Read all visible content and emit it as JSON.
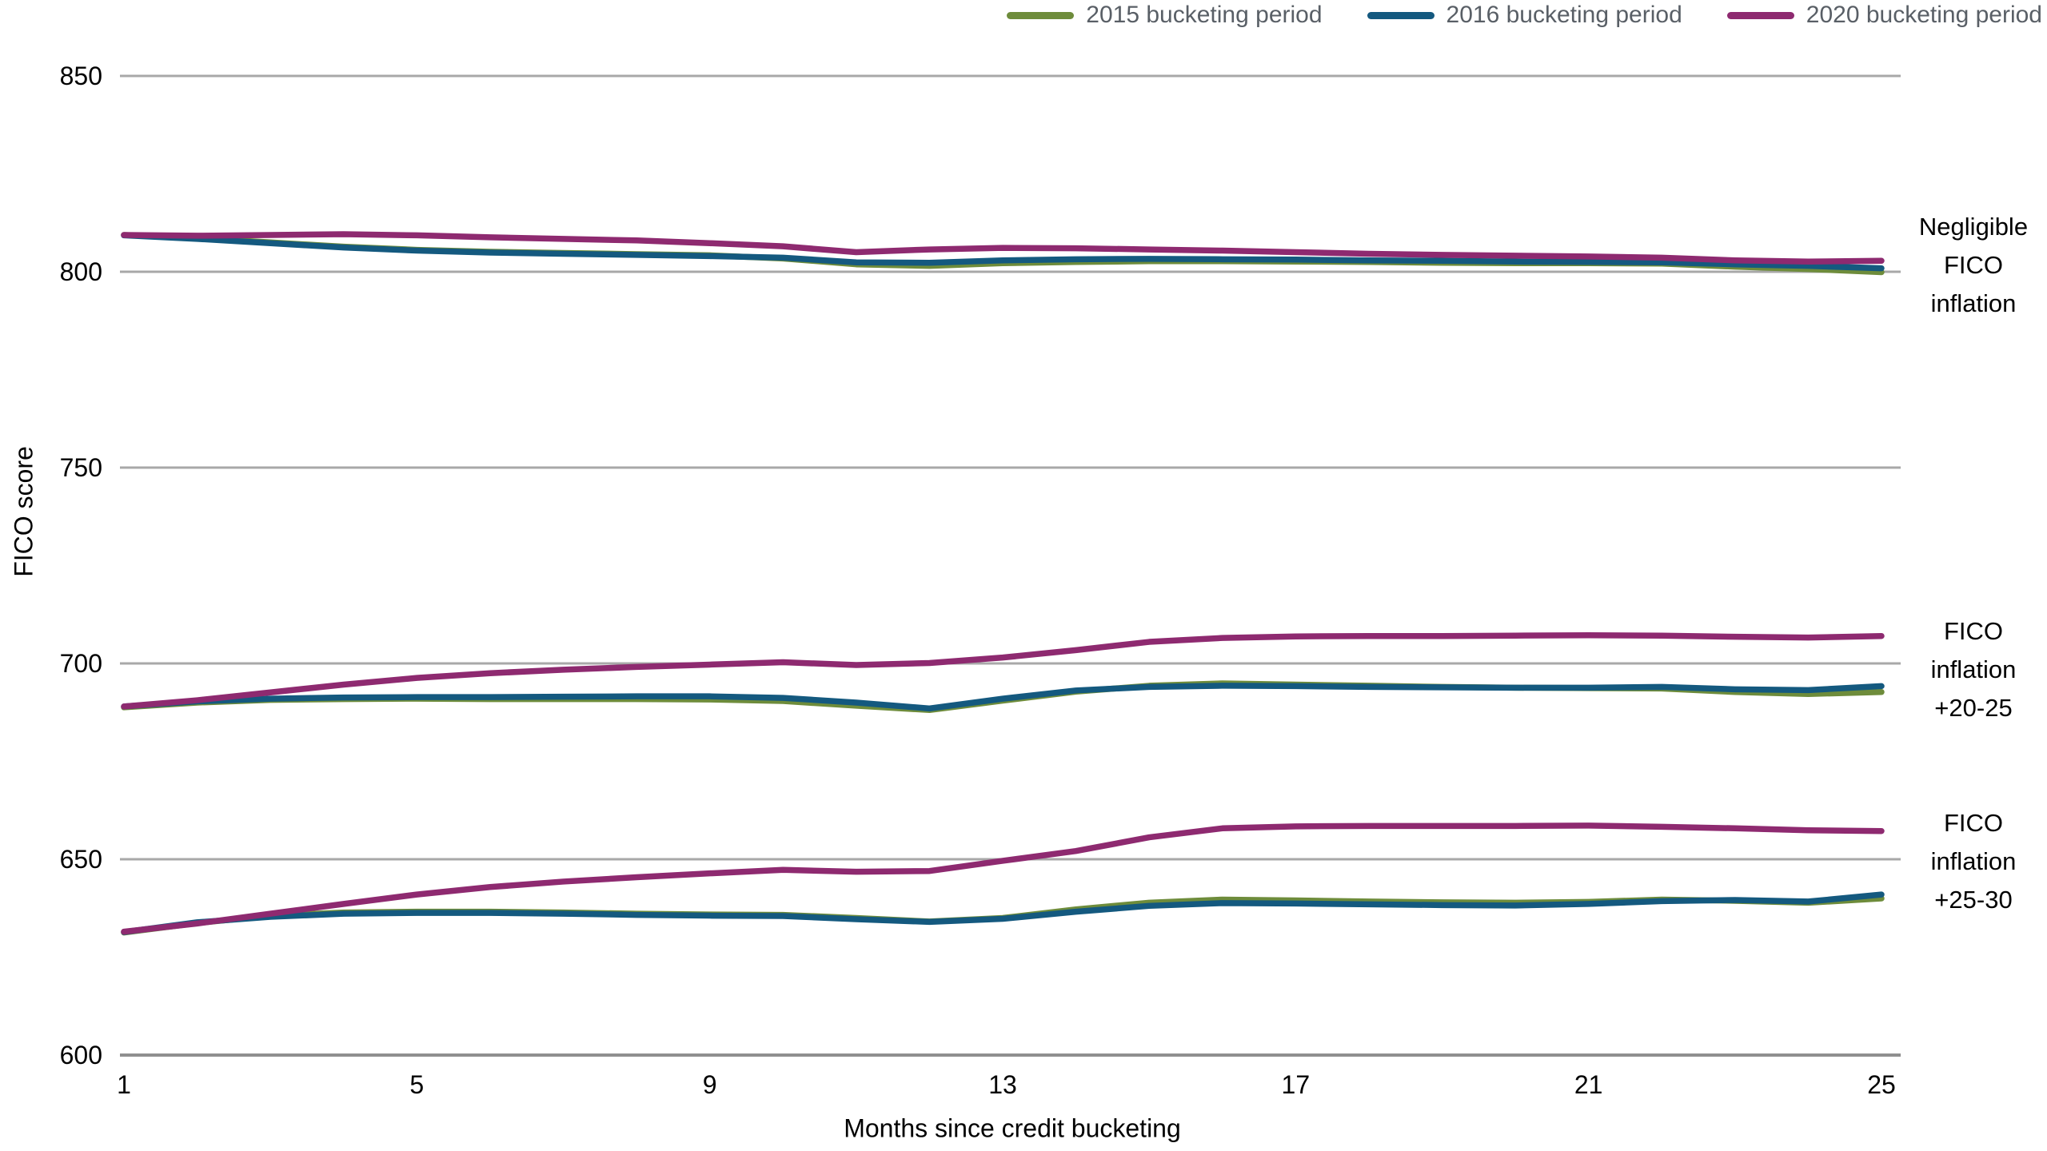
{
  "legend": {
    "items": [
      {
        "id": "p2015",
        "label": "2015 bucketing period",
        "color": "#6E8C3B"
      },
      {
        "id": "p2016",
        "label": "2016 bucketing period",
        "color": "#14597F"
      },
      {
        "id": "p2020",
        "label": "2020 bucketing period",
        "color": "#8E2A70"
      }
    ]
  },
  "axes": {
    "x_label": "Months since credit bucketing",
    "y_label": "FICO score"
  },
  "annotations": [
    {
      "id": "negligible",
      "text": "Negligible\nFICO\ninflation"
    },
    {
      "id": "inflation-20-25",
      "text": "FICO\ninflation\n+20-25"
    },
    {
      "id": "inflation-25-30",
      "text": "FICO\ninflation\n+25-30"
    }
  ],
  "chart_data": {
    "type": "line",
    "title": "",
    "xlabel": "Months since credit bucketing",
    "ylabel": "FICO score",
    "xlim": [
      1,
      25
    ],
    "ylim": [
      600,
      850
    ],
    "x_ticks": [
      1,
      5,
      9,
      13,
      17,
      21,
      25
    ],
    "y_ticks": [
      600,
      650,
      700,
      750,
      800,
      850
    ],
    "grid": "horizontal",
    "gridline_color": "#a8a8a8",
    "legend_position": "top-right",
    "x": [
      1,
      2,
      3,
      4,
      5,
      6,
      7,
      8,
      9,
      10,
      11,
      12,
      13,
      14,
      15,
      16,
      17,
      18,
      19,
      20,
      21,
      22,
      23,
      24,
      25
    ],
    "series": [
      {
        "name": "2015 bucketing period — Negligible FICO inflation",
        "period": "2015 bucketing period",
        "group": "Negligible FICO inflation",
        "color": "#6E8C3B",
        "values": [
          809.4,
          808.6,
          807.5,
          806.4,
          805.6,
          805.1,
          804.8,
          804.5,
          804.2,
          803.4,
          801.9,
          801.5,
          802.2,
          802.5,
          802.7,
          802.7,
          802.6,
          802.5,
          802.3,
          802.2,
          802.2,
          802.1,
          801.3,
          800.7,
          799.9
        ]
      },
      {
        "name": "2016 bucketing period — Negligible FICO inflation",
        "period": "2016 bucketing period",
        "group": "Negligible FICO inflation",
        "color": "#14597F",
        "values": [
          809.3,
          808.4,
          807.3,
          806.2,
          805.4,
          804.9,
          804.6,
          804.3,
          804.0,
          803.6,
          802.4,
          802.3,
          802.9,
          803.2,
          803.3,
          803.2,
          803.1,
          802.9,
          802.8,
          802.6,
          802.5,
          802.4,
          801.9,
          801.5,
          800.9
        ]
      },
      {
        "name": "2020 bucketing period — Negligible FICO inflation",
        "period": "2020 bucketing period",
        "group": "Negligible FICO inflation",
        "color": "#8E2A70",
        "values": [
          809.4,
          809.2,
          809.4,
          809.6,
          809.3,
          808.8,
          808.4,
          808.0,
          807.3,
          806.5,
          805.0,
          805.7,
          806.1,
          806.0,
          805.7,
          805.4,
          805.0,
          804.6,
          804.3,
          804.1,
          803.9,
          803.6,
          802.9,
          802.6,
          802.8
        ]
      },
      {
        "name": "2015 bucketing period — FICO inflation +20-25",
        "period": "2015 bucketing period",
        "group": "FICO inflation +20-25",
        "color": "#6E8C3B",
        "values": [
          688.8,
          690.0,
          690.7,
          690.9,
          691.0,
          690.9,
          690.9,
          690.9,
          690.8,
          690.4,
          689.2,
          688.1,
          690.5,
          692.8,
          694.3,
          694.9,
          694.6,
          694.3,
          694.0,
          693.8,
          693.7,
          693.6,
          692.7,
          692.2,
          692.7
        ]
      },
      {
        "name": "2016 bucketing period — FICO inflation +20-25",
        "period": "2016 bucketing period",
        "group": "FICO inflation +20-25",
        "color": "#14597F",
        "values": [
          689.0,
          690.3,
          691.0,
          691.3,
          691.4,
          691.4,
          691.5,
          691.6,
          691.6,
          691.2,
          690.0,
          688.5,
          691.0,
          693.1,
          694.0,
          694.3,
          694.2,
          694.0,
          693.9,
          693.8,
          693.8,
          694.0,
          693.4,
          693.2,
          694.2
        ]
      },
      {
        "name": "2020 bucketing period — FICO inflation +20-25",
        "period": "2020 bucketing period",
        "group": "FICO inflation +20-25",
        "color": "#8E2A70",
        "values": [
          689.0,
          690.6,
          692.6,
          694.6,
          696.3,
          697.5,
          698.4,
          699.1,
          699.7,
          700.3,
          699.6,
          700.1,
          701.5,
          703.4,
          705.5,
          706.5,
          706.9,
          707.0,
          707.0,
          707.1,
          707.2,
          707.1,
          706.8,
          706.6,
          707.0
        ]
      },
      {
        "name": "2015 bucketing period — FICO inflation +25-30",
        "period": "2015 bucketing period",
        "group": "FICO inflation +25-30",
        "color": "#6E8C3B",
        "values": [
          631.3,
          633.7,
          635.6,
          636.4,
          636.6,
          636.6,
          636.4,
          636.1,
          635.9,
          635.8,
          635.0,
          634.1,
          635.0,
          637.2,
          638.9,
          639.7,
          639.5,
          639.2,
          639.0,
          638.9,
          639.1,
          639.7,
          639.4,
          638.9,
          640.0
        ]
      },
      {
        "name": "2016 bucketing period — FICO inflation +25-30",
        "period": "2016 bucketing period",
        "group": "FICO inflation +25-30",
        "color": "#14597F",
        "values": [
          631.4,
          633.9,
          635.3,
          636.1,
          636.3,
          636.3,
          636.1,
          635.8,
          635.6,
          635.5,
          634.7,
          634.0,
          634.8,
          636.6,
          638.1,
          638.8,
          638.7,
          638.5,
          638.3,
          638.2,
          638.6,
          639.3,
          639.6,
          639.2,
          641.0
        ]
      },
      {
        "name": "2020 bucketing period — FICO inflation +25-30",
        "period": "2020 bucketing period",
        "group": "FICO inflation +25-30",
        "color": "#8E2A70",
        "values": [
          631.5,
          633.6,
          636.1,
          638.6,
          641.0,
          642.9,
          644.3,
          645.4,
          646.4,
          647.3,
          646.8,
          647.0,
          649.6,
          652.1,
          655.6,
          657.9,
          658.4,
          658.5,
          658.5,
          658.5,
          658.6,
          658.3,
          657.9,
          657.4,
          657.2
        ]
      }
    ]
  }
}
